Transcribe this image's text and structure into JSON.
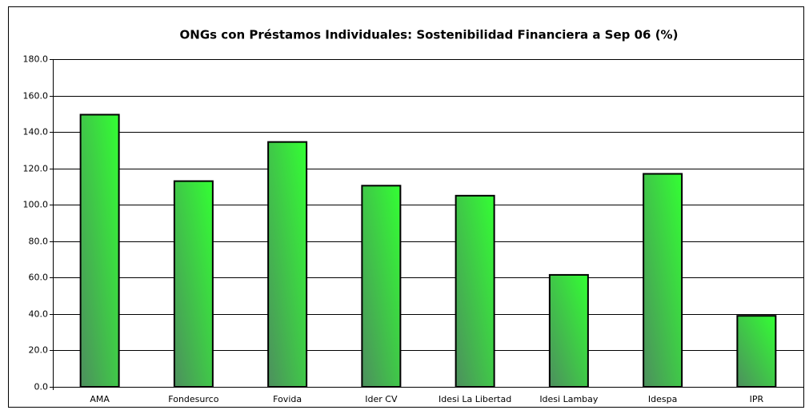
{
  "chart_data": {
    "type": "bar",
    "title": "ONGs con Préstamos Individuales:  Sostenibilidad Financiera a Sep 06 (%)",
    "categories": [
      "AMA",
      "Fondesurco",
      "Fovida",
      "Ider CV",
      "Idesi La Libertad",
      "Idesi Lambay",
      "Idespa",
      "IPR"
    ],
    "values": [
      149.5,
      113,
      134.5,
      110.5,
      105,
      61.5,
      117,
      39
    ],
    "color": "#33ff33",
    "ylim": [
      0,
      180
    ],
    "yticks": [
      {
        "value": 0,
        "label": "0.0"
      },
      {
        "value": 20,
        "label": "20.0"
      },
      {
        "value": 40,
        "label": "40.0"
      },
      {
        "value": 60,
        "label": "60.0"
      },
      {
        "value": 80,
        "label": "80.0"
      },
      {
        "value": 100,
        "label": "100.0"
      },
      {
        "value": 120,
        "label": "120.0"
      },
      {
        "value": 140,
        "label": "140.0"
      },
      {
        "value": 160,
        "label": "160.0"
      },
      {
        "value": 180,
        "label": "180.0"
      }
    ],
    "grid": true
  }
}
